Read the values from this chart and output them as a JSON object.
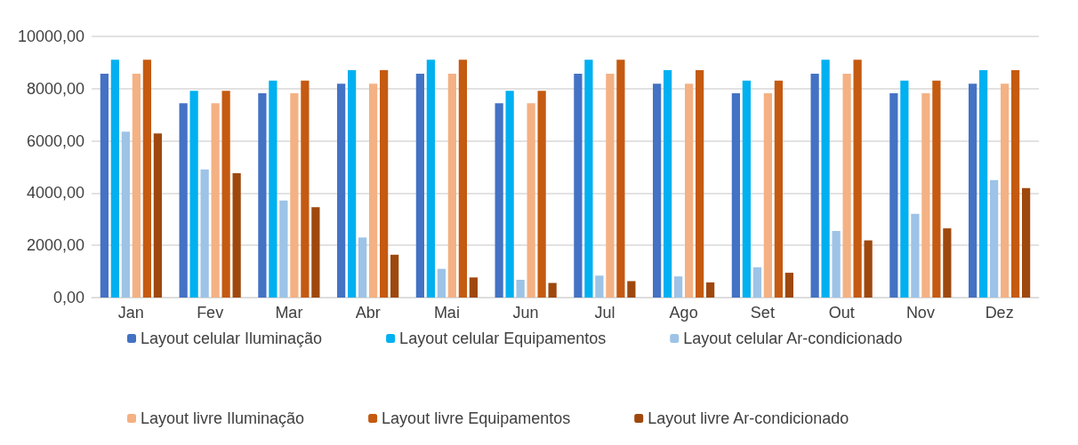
{
  "chart_data": {
    "type": "bar",
    "categories": [
      "Jan",
      "Fev",
      "Mar",
      "Abr",
      "Mai",
      "Jun",
      "Jul",
      "Ago",
      "Set",
      "Out",
      "Nov",
      "Dez"
    ],
    "series": [
      {
        "name": "Layout celular Iluminação",
        "color": "#4472c4",
        "values": [
          8570,
          7440,
          7820,
          8190,
          8570,
          7440,
          8570,
          8190,
          7820,
          8570,
          7820,
          8190
        ]
      },
      {
        "name": "Layout celular Equipamentos",
        "color": "#00b0f0",
        "values": [
          9110,
          7920,
          8310,
          8710,
          9110,
          7920,
          9110,
          8710,
          8310,
          9110,
          8310,
          8710
        ]
      },
      {
        "name": "Layout celular Ar-condicionado",
        "color": "#9dc3e6",
        "values": [
          6350,
          4910,
          3720,
          2300,
          1100,
          680,
          840,
          810,
          1160,
          2550,
          3210,
          4500
        ]
      },
      {
        "name": "Layout livre Iluminação",
        "color": "#f4b183",
        "values": [
          8570,
          7440,
          7820,
          8190,
          8570,
          7440,
          8570,
          8190,
          7820,
          8570,
          7820,
          8190
        ]
      },
      {
        "name": "Layout livre Equipamentos",
        "color": "#c55a11",
        "values": [
          9110,
          7920,
          8310,
          8710,
          9110,
          7920,
          9110,
          8710,
          8310,
          9110,
          8310,
          8710
        ]
      },
      {
        "name": "Layout livre Ar-condicionado",
        "color": "#9e480e",
        "values": [
          6280,
          4760,
          3460,
          1640,
          770,
          560,
          630,
          580,
          950,
          2190,
          2650,
          4190
        ]
      }
    ],
    "ylim": [
      0,
      10000
    ],
    "yticks": [
      {
        "value": 0,
        "label": "0,00"
      },
      {
        "value": 2000,
        "label": "2000,00"
      },
      {
        "value": 4000,
        "label": "4000,00"
      },
      {
        "value": 6000,
        "label": "6000,00"
      },
      {
        "value": 8000,
        "label": "8000,00"
      },
      {
        "value": 10000,
        "label": "10000,00"
      }
    ],
    "grid": "y",
    "legend": "bottom"
  }
}
